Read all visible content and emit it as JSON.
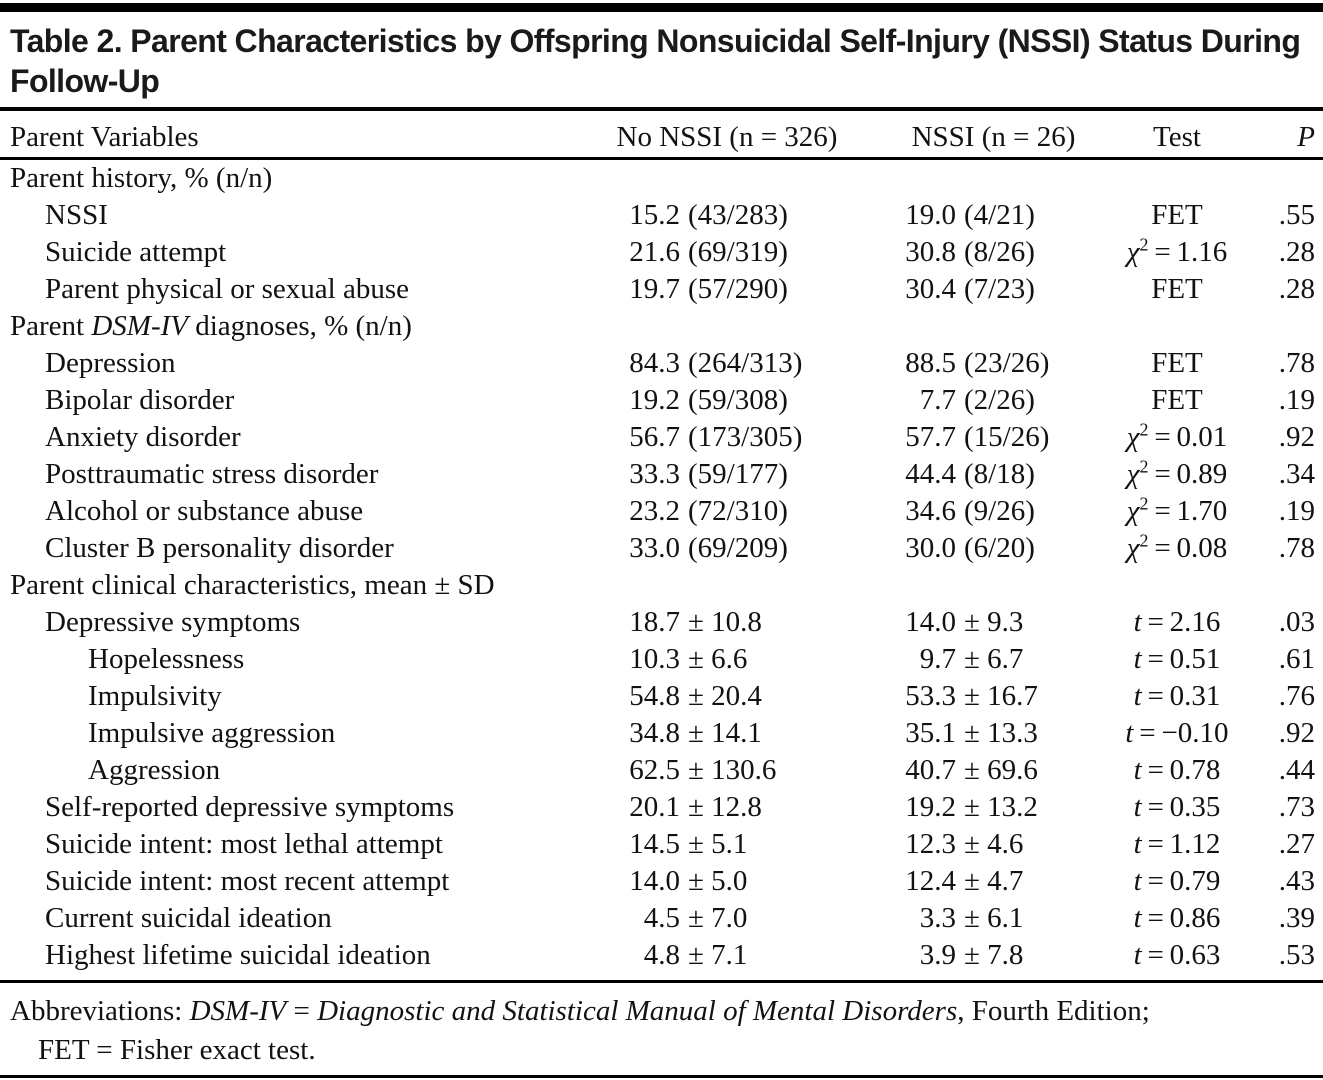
{
  "title": "Table 2. Parent Characteristics by Offspring Nonsuicidal Self-Injury (NSSI) Status During Follow-Up",
  "table": {
    "columns": {
      "variable": "Parent Variables",
      "no_nssi": "No NSSI (n = 326)",
      "nssi": "NSSI (n = 26)",
      "test": "Test",
      "p": "P"
    },
    "rows": [
      {
        "section": true,
        "label": "Parent history, % (n/n)"
      },
      {
        "indent": 1,
        "label": "NSSI",
        "no_nssi": "15.2 (43/283)",
        "nssi": "19.0 (4/21)",
        "test": {
          "stat": "FET"
        },
        "p": ".55"
      },
      {
        "indent": 1,
        "label": "Suicide attempt",
        "no_nssi": "21.6 (69/319)",
        "nssi": "30.8 (8/26)",
        "test": {
          "stat": "chi2",
          "value": "1.16"
        },
        "p": ".28"
      },
      {
        "indent": 1,
        "label": "Parent physical or sexual abuse",
        "no_nssi": "19.7 (57/290)",
        "nssi": "30.4 (7/23)",
        "test": {
          "stat": "FET"
        },
        "p": ".28"
      },
      {
        "section": true,
        "label_runs": [
          {
            "t": "Parent "
          },
          {
            "t": "DSM-IV",
            "i": true
          },
          {
            "t": " diagnoses, % (n/n)"
          }
        ]
      },
      {
        "indent": 1,
        "label": "Depression",
        "no_nssi": "84.3 (264/313)",
        "nssi": "88.5 (23/26)",
        "test": {
          "stat": "FET"
        },
        "p": ".78"
      },
      {
        "indent": 1,
        "label": "Bipolar disorder",
        "no_nssi": "19.2 (59/308)",
        "nssi": "7.7 (2/26)",
        "test": {
          "stat": "FET"
        },
        "p": ".19"
      },
      {
        "indent": 1,
        "label": "Anxiety disorder",
        "no_nssi": "56.7 (173/305)",
        "nssi": "57.7 (15/26)",
        "test": {
          "stat": "chi2",
          "value": "0.01"
        },
        "p": ".92"
      },
      {
        "indent": 1,
        "label": "Posttraumatic stress disorder",
        "no_nssi": "33.3 (59/177)",
        "nssi": "44.4 (8/18)",
        "test": {
          "stat": "chi2",
          "value": "0.89"
        },
        "p": ".34"
      },
      {
        "indent": 1,
        "label": "Alcohol or substance abuse",
        "no_nssi": "23.2 (72/310)",
        "nssi": "34.6 (9/26)",
        "test": {
          "stat": "chi2",
          "value": "1.70"
        },
        "p": ".19"
      },
      {
        "indent": 1,
        "label": "Cluster B personality disorder",
        "no_nssi": "33.0 (69/209)",
        "nssi": "30.0 (6/20)",
        "test": {
          "stat": "chi2",
          "value": "0.08"
        },
        "p": ".78"
      },
      {
        "section": true,
        "label": "Parent clinical characteristics, mean ± SD"
      },
      {
        "indent": 1,
        "label": "Depressive symptoms",
        "no_nssi": "18.7 ± 10.8",
        "nssi": "14.0 ± 9.3",
        "test": {
          "stat": "t",
          "value": "2.16"
        },
        "p": ".03"
      },
      {
        "indent": 2,
        "label": "Hopelessness",
        "no_nssi": "10.3 ± 6.6",
        "nssi": "9.7 ± 6.7",
        "test": {
          "stat": "t",
          "value": "0.51"
        },
        "p": ".61"
      },
      {
        "indent": 2,
        "label": "Impulsivity",
        "no_nssi": "54.8 ± 20.4",
        "nssi": "53.3 ± 16.7",
        "test": {
          "stat": "t",
          "value": "0.31"
        },
        "p": ".76"
      },
      {
        "indent": 2,
        "label": "Impulsive aggression",
        "no_nssi": "34.8 ± 14.1",
        "nssi": "35.1 ± 13.3",
        "test": {
          "stat": "t",
          "value": "−0.10"
        },
        "p": ".92"
      },
      {
        "indent": 2,
        "label": "Aggression",
        "no_nssi": "62.5 ± 130.6",
        "nssi": "40.7 ± 69.6",
        "test": {
          "stat": "t",
          "value": "0.78"
        },
        "p": ".44"
      },
      {
        "indent": 1,
        "label": "Self-reported depressive symptoms",
        "no_nssi": "20.1 ± 12.8",
        "nssi": "19.2 ± 13.2",
        "test": {
          "stat": "t",
          "value": "0.35"
        },
        "p": ".73"
      },
      {
        "indent": 1,
        "label": "Suicide intent: most lethal attempt",
        "no_nssi": "14.5 ± 5.1",
        "nssi": "12.3 ± 4.6",
        "test": {
          "stat": "t",
          "value": "1.12"
        },
        "p": ".27"
      },
      {
        "indent": 1,
        "label": "Suicide intent: most recent attempt",
        "no_nssi": "14.0 ± 5.0",
        "nssi": "12.4 ± 4.7",
        "test": {
          "stat": "t",
          "value": "0.79"
        },
        "p": ".43"
      },
      {
        "indent": 1,
        "label": "Current suicidal ideation",
        "no_nssi": "4.5 ± 7.0",
        "nssi": "3.3 ± 6.1",
        "test": {
          "stat": "t",
          "value": "0.86"
        },
        "p": ".39"
      },
      {
        "indent": 1,
        "label": "Highest lifetime suicidal ideation",
        "no_nssi": "4.8 ± 7.1",
        "nssi": "3.9 ± 7.8",
        "test": {
          "stat": "t",
          "value": "0.63"
        },
        "p": ".53"
      }
    ],
    "footnote_runs": [
      {
        "t": "Abbreviations: "
      },
      {
        "t": "DSM-IV",
        "i": true
      },
      {
        "t": " = "
      },
      {
        "t": "Diagnostic and Statistical Manual of Mental Disorders",
        "i": true
      },
      {
        "t": ", Fourth Edition;"
      },
      {
        "br": true
      },
      {
        "t": "FET = Fisher exact test."
      }
    ]
  },
  "colors": {
    "text": "#121212",
    "rule": "#000000",
    "background": "#ffffff"
  }
}
